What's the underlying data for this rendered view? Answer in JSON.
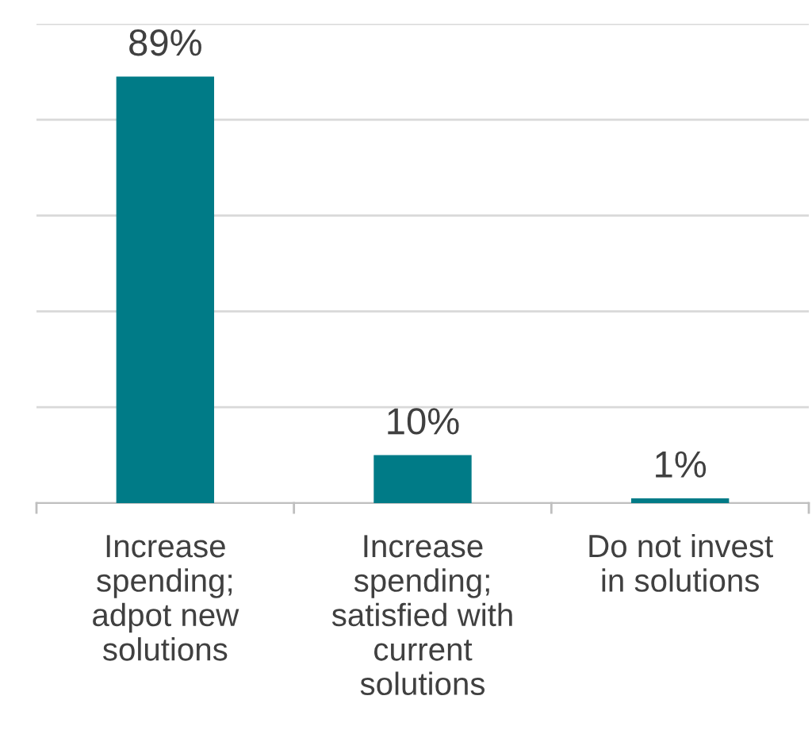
{
  "chart_data": {
    "type": "bar",
    "categories": [
      "Increase\nspending;\nadpot new\nsolutions",
      "Increase\nspending;\nsatisfied with\ncurrent\nsolutions",
      "Do not invest\nin solutions"
    ],
    "values": [
      89,
      10,
      1
    ],
    "color": "#007b87",
    "value_labels": [
      "89%",
      "10%",
      "1%"
    ],
    "ylim": [
      0,
      100
    ],
    "yticks": [
      {
        "value": 0,
        "label": null
      },
      {
        "value": 20,
        "label": null
      },
      {
        "value": 40,
        "label": null
      },
      {
        "value": 60,
        "label": null
      },
      {
        "value": 80,
        "label": null
      },
      {
        "value": 100,
        "label": null
      }
    ],
    "tick_labels": "x",
    "grid": "y",
    "legend": false
  }
}
